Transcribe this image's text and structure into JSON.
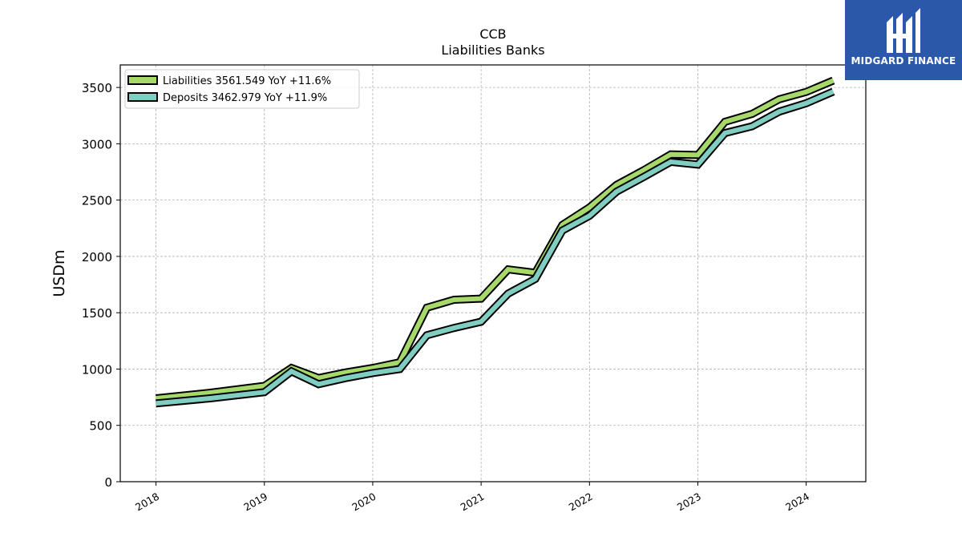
{
  "logo": {
    "text": "MIDGARD FINANCE",
    "bg_color": "#2b58a9"
  },
  "chart_data": {
    "type": "line",
    "title": "CCB",
    "subtitle": "Liabilities Banks",
    "ylabel": "USDm",
    "xlabel": "",
    "ylim": [
      0,
      3700
    ],
    "yticks": [
      0,
      500,
      1000,
      1500,
      2000,
      2500,
      3000,
      3500
    ],
    "xlim": [
      2017.67,
      2024.55
    ],
    "xticks": [
      "2018",
      "2019",
      "2020",
      "2021",
      "2022",
      "2023",
      "2024"
    ],
    "grid": true,
    "legend_position": "top-left",
    "x": [
      2018.0,
      2018.5,
      2019.0,
      2019.25,
      2019.5,
      2019.75,
      2020.0,
      2020.25,
      2020.5,
      2020.75,
      2021.0,
      2021.25,
      2021.5,
      2021.75,
      2022.0,
      2022.25,
      2022.5,
      2022.75,
      2023.0,
      2023.25,
      2023.5,
      2023.75,
      2024.0,
      2024.25
    ],
    "series": [
      {
        "name": "Liabilities",
        "legend_label": "Liabilities  3561.549 YoY +11.6%",
        "color": "#a6d96a",
        "values": [
          740,
          790,
          850,
          1010,
          920,
          970,
          1010,
          1060,
          1545,
          1615,
          1625,
          1885,
          1855,
          2280,
          2435,
          2635,
          2765,
          2905,
          2900,
          3195,
          3265,
          3395,
          3460,
          3561.549
        ]
      },
      {
        "name": "Deposits",
        "legend_label": "Deposits  3462.979 YoY +11.9%",
        "color": "#80cdc1",
        "values": [
          695,
          740,
          795,
          980,
          865,
          920,
          965,
          1000,
          1300,
          1365,
          1420,
          1670,
          1800,
          2230,
          2360,
          2575,
          2705,
          2840,
          2815,
          3095,
          3155,
          3285,
          3360,
          3462.979
        ]
      }
    ]
  }
}
